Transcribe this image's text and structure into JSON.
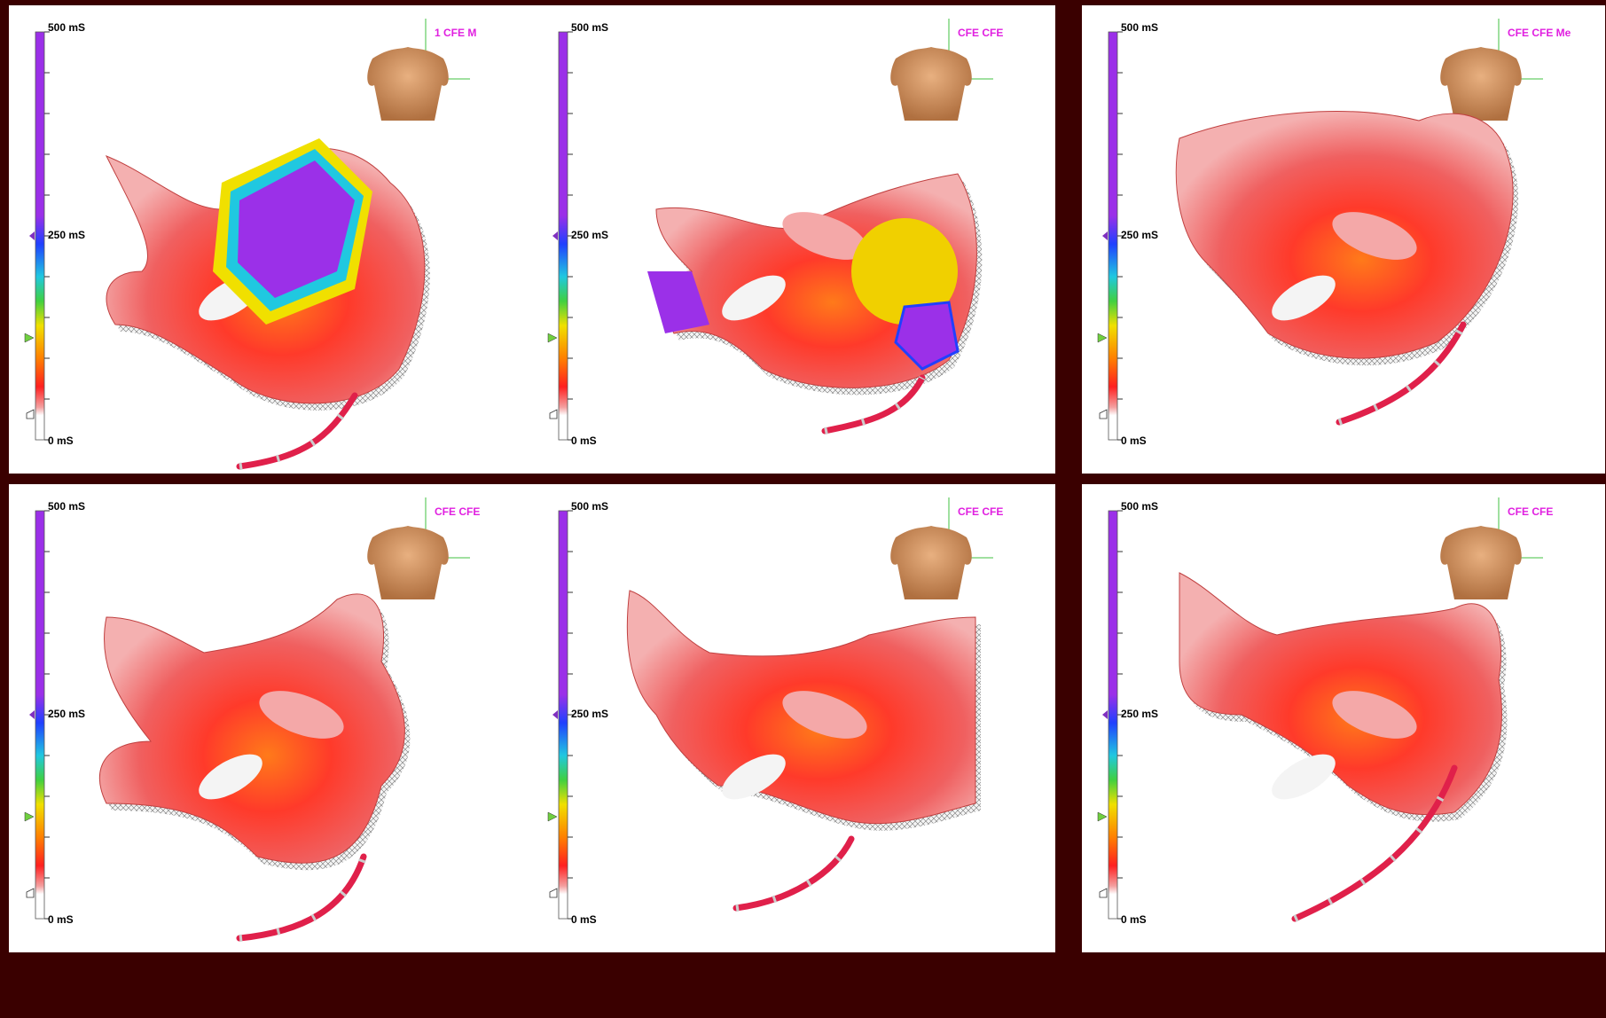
{
  "panels": [
    {
      "label": "1 CFE M",
      "scale": {
        "max": "500 mS",
        "mid": "250 mS",
        "min": "0 mS"
      }
    },
    {
      "label": "CFE CFE",
      "scale": {
        "max": "500 mS",
        "mid": "250 mS",
        "min": "0 mS"
      }
    },
    {
      "label": "CFE CFE Me",
      "scale": {
        "max": "500 mS",
        "mid": "250 mS",
        "min": "0 mS"
      }
    },
    {
      "label": "CFE CFE",
      "scale": {
        "max": "500 mS",
        "mid": "250 mS",
        "min": "0 mS"
      }
    },
    {
      "label": "CFE CFE",
      "scale": {
        "max": "500 mS",
        "mid": "250 mS",
        "min": "0 mS"
      }
    },
    {
      "label": "CFE CFE",
      "scale": {
        "max": "500 mS",
        "mid": "250 mS",
        "min": "0 mS"
      }
    }
  ]
}
